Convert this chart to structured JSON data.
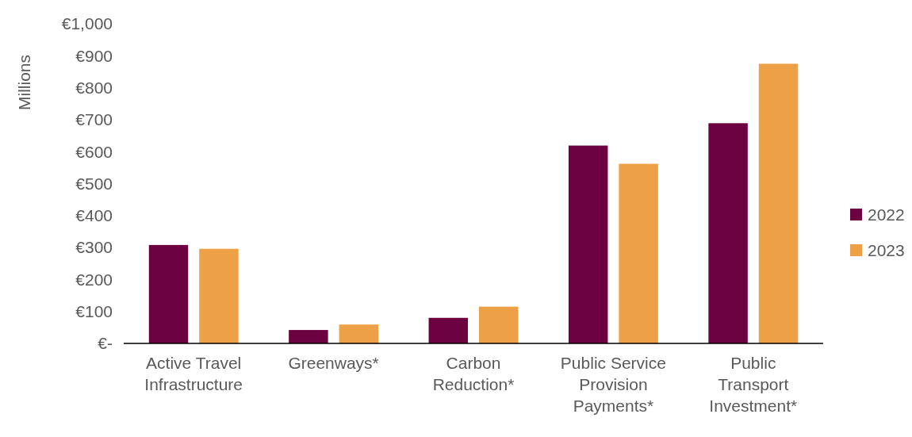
{
  "chart_data": {
    "type": "bar",
    "ylabel": "Millions",
    "categories": [
      "Active Travel Infrastructure",
      "Greenways*",
      "Carbon Reduction*",
      "Public Service Provision Payments*",
      "Public Transport Investment*"
    ],
    "series": [
      {
        "name": "2022",
        "color": "#6c0340",
        "values": [
          308,
          42,
          80,
          619,
          689
        ]
      },
      {
        "name": "2023",
        "color": "#eea046",
        "values": [
          296,
          59,
          115,
          562,
          875
        ]
      }
    ],
    "ylim": [
      0,
      1000
    ],
    "yticks": [
      {
        "value": 0,
        "label": "€-"
      },
      {
        "value": 100,
        "label": "€100"
      },
      {
        "value": 200,
        "label": "€200"
      },
      {
        "value": 300,
        "label": "€300"
      },
      {
        "value": 400,
        "label": "€400"
      },
      {
        "value": 500,
        "label": "€500"
      },
      {
        "value": 600,
        "label": "€600"
      },
      {
        "value": 700,
        "label": "€700"
      },
      {
        "value": 800,
        "label": "€800"
      },
      {
        "value": 900,
        "label": "€900"
      },
      {
        "value": 1000,
        "label": "€1,000"
      }
    ],
    "grid": false,
    "legend": "right"
  }
}
